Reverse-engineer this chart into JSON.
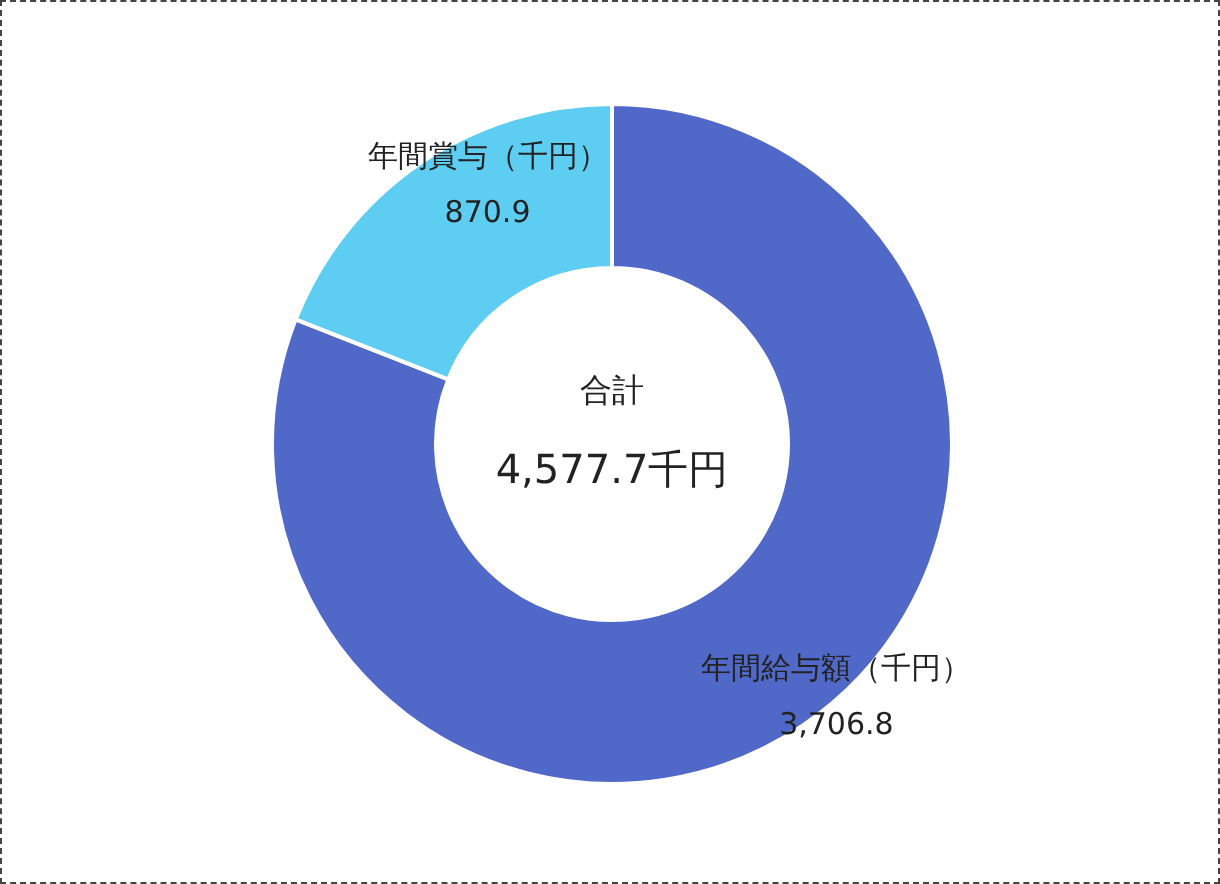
{
  "chart_data": {
    "type": "donut",
    "categories": [
      "年間給与額（千円）",
      "年間賞与（千円）"
    ],
    "values": [
      3706.8,
      870.9
    ],
    "value_labels": [
      "3,706.8",
      "870.9"
    ],
    "colors": [
      "#5068c8",
      "#5ecdf2"
    ],
    "annotations": [
      "合計",
      "4,577.7千円"
    ],
    "legend": false
  }
}
